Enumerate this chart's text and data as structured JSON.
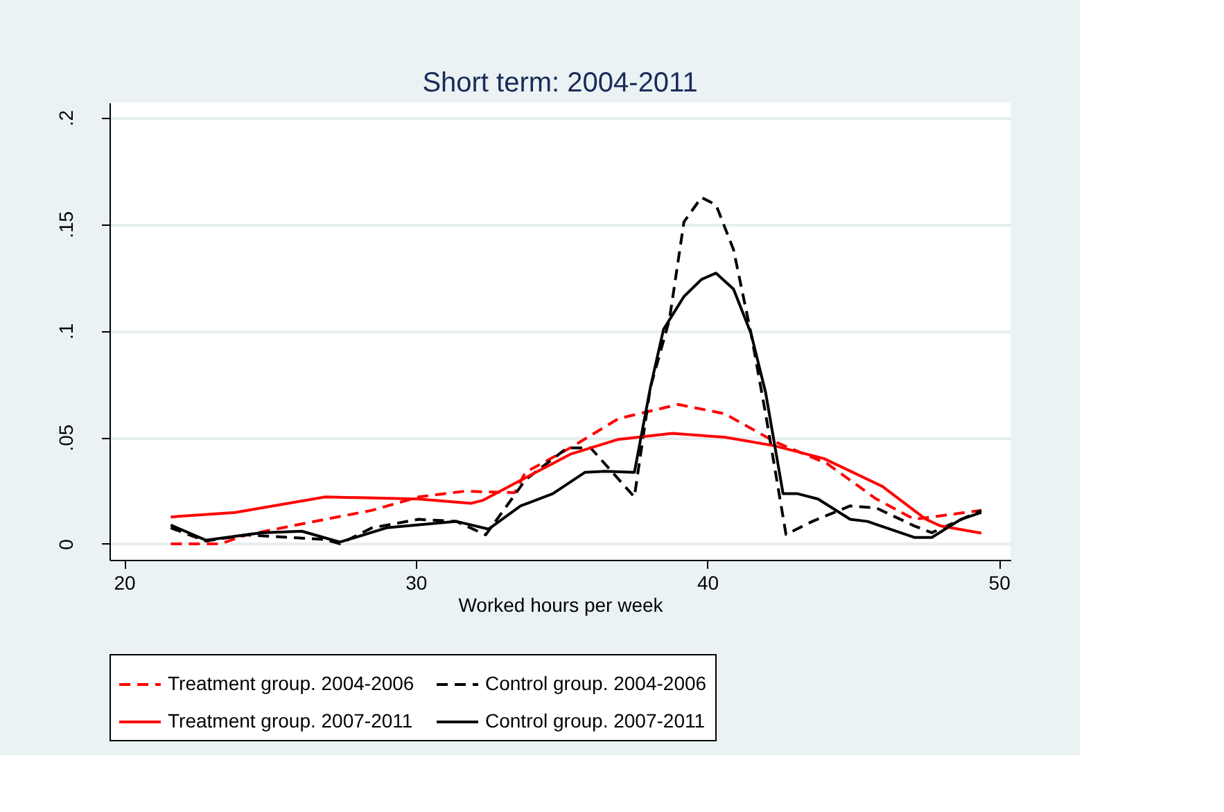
{
  "chart_data": {
    "type": "line",
    "title": "Short term: 2004-2011",
    "xlabel": "Worked hours per week",
    "xlim": [
      19.5,
      50.4
    ],
    "xticks": [
      20,
      30,
      40,
      50
    ],
    "ylim": [
      -0.0075,
      0.207
    ],
    "yticks": [
      0,
      {
        "value": 0.05,
        "label": ".05"
      },
      {
        "value": 0.1,
        "label": ".1"
      },
      {
        "value": 0.15,
        "label": ".15"
      },
      {
        "value": 0.2,
        "label": ".2"
      }
    ],
    "grid": "y",
    "legend": "bottom",
    "marker": "none",
    "series": [
      {
        "name": "Treatment group. 2004-2006",
        "color": "#ff0000",
        "line_style": "dashed",
        "x": [
          21.6,
          23.3,
          24.2,
          26.9,
          28.5,
          30.1,
          31.7,
          33.4,
          33.76,
          35.3,
          36.95,
          39.0,
          40.6,
          42.3,
          44.1,
          45.8,
          47.1,
          49.4
        ],
        "values": [
          0,
          0,
          0.0042,
          0.0115,
          0.0157,
          0.022,
          0.0247,
          0.024,
          0.0335,
          0.045,
          0.0587,
          0.0654,
          0.061,
          0.048,
          0.0377,
          0.021,
          0.0115,
          0.0157
        ]
      },
      {
        "name": "Control group. 2004-2006",
        "color": "#000000",
        "line_style": "dashed",
        "x": [
          21.6,
          22.8,
          24.2,
          26.9,
          27.4,
          28.5,
          30.1,
          31.4,
          32.4,
          33.4,
          33.76,
          35.2,
          36.0,
          37.5,
          38.05,
          38.7,
          39.2,
          39.8,
          40.3,
          40.9,
          41.5,
          42.0,
          42.7,
          43.6,
          44.9,
          45.8,
          47.1,
          47.7,
          49.4
        ],
        "values": [
          0.0075,
          0.0013,
          0.0042,
          0.002,
          0,
          0.0075,
          0.0115,
          0.0105,
          0.0042,
          0.023,
          0.03,
          0.045,
          0.045,
          0.022,
          0.0734,
          0.105,
          0.151,
          0.1625,
          0.159,
          0.138,
          0.0987,
          0.061,
          0.0044,
          0.0105,
          0.0178,
          0.0168,
          0.0084,
          0.0052,
          0.0157
        ]
      },
      {
        "name": "Treatment group. 2007-2011",
        "color": "#ff0000",
        "line_style": "solid",
        "x": [
          21.6,
          23.8,
          26.9,
          30.1,
          31.9,
          32.3,
          33.6,
          34.7,
          35.3,
          36.95,
          38.8,
          40.6,
          42.3,
          44.0,
          46.0,
          47.5,
          48.0,
          49.4
        ],
        "values": [
          0.0126,
          0.0147,
          0.022,
          0.021,
          0.019,
          0.0204,
          0.0298,
          0.0377,
          0.042,
          0.049,
          0.0518,
          0.05,
          0.046,
          0.04,
          0.027,
          0.0115,
          0.0084,
          0.005
        ]
      },
      {
        "name": "Control group. 2007-2011",
        "color": "#000000",
        "line_style": "solid",
        "x": [
          21.6,
          22.8,
          24.7,
          26.1,
          27.4,
          29.0,
          31.4,
          32.5,
          33.6,
          34.7,
          35.8,
          36.5,
          37.5,
          38.05,
          38.5,
          39.2,
          39.8,
          40.3,
          40.9,
          41.5,
          42.0,
          42.6,
          43.1,
          43.8,
          44.9,
          45.5,
          47.1,
          47.7,
          48.7,
          49.4
        ],
        "values": [
          0.0088,
          0.0017,
          0.0052,
          0.0059,
          0.0008,
          0.0075,
          0.0105,
          0.0069,
          0.0178,
          0.0235,
          0.0335,
          0.034,
          0.0335,
          0.0734,
          0.1006,
          0.116,
          0.124,
          0.127,
          0.1195,
          0.0987,
          0.071,
          0.0235,
          0.0235,
          0.021,
          0.0115,
          0.0105,
          0.003,
          0.003,
          0.0115,
          0.0147
        ]
      }
    ]
  }
}
